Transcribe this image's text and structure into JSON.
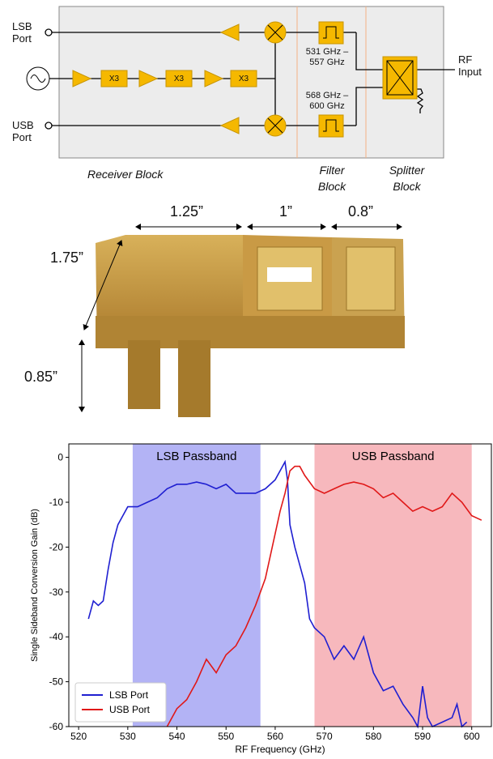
{
  "diagram": {
    "lsb_port": "LSB Port",
    "usb_port": "USB Port",
    "rf_input": "RF Input",
    "multipliers": [
      "X3",
      "X3",
      "X3"
    ],
    "lsb_filter": "531 GHz – 557 GHz",
    "usb_filter": "568 GHz – 600 GHz",
    "receiver_block": "Receiver Block",
    "filter_block": "Filter Block",
    "splitter_block": "Splitter Block"
  },
  "photo": {
    "dimensions": [
      "1.25”",
      "1”",
      "0.8”",
      "1.75”",
      "0.85”"
    ]
  },
  "chart_data": {
    "type": "line",
    "xlabel": "RF Frequency (GHz)",
    "ylabel": "Single Sideband Conversion Gain (dB)",
    "xlim": [
      518,
      604
    ],
    "ylim": [
      -60,
      3
    ],
    "xticks": [
      520,
      530,
      540,
      550,
      560,
      570,
      580,
      590,
      600
    ],
    "yticks": [
      0,
      -10,
      -20,
      -30,
      -40,
      -50,
      -60
    ],
    "legend": "lower left",
    "bands": [
      {
        "label": "LSB Passband",
        "range": [
          531,
          557
        ],
        "color": "#b3b3f5"
      },
      {
        "label": "USB Passband",
        "range": [
          568,
          600
        ],
        "color": "#f7b8bd"
      }
    ],
    "series": [
      {
        "name": "LSB Port",
        "color": "#1f1fd1",
        "x": [
          522,
          523,
          524,
          525,
          526,
          527,
          528,
          529,
          530,
          532,
          534,
          536,
          538,
          540,
          542,
          544,
          546,
          548,
          550,
          552,
          554,
          556,
          558,
          560,
          561,
          562,
          562.5,
          563,
          564,
          565,
          566,
          567,
          568,
          570,
          572,
          574,
          576,
          578,
          580,
          582,
          584,
          586,
          588,
          589,
          590,
          591,
          592,
          594,
          596,
          597,
          598,
          599
        ],
        "values": [
          -36,
          -32,
          -33,
          -32,
          -25,
          -19,
          -15,
          -13,
          -11,
          -11,
          -10,
          -9,
          -7,
          -6,
          -6,
          -5.5,
          -6,
          -7,
          -6,
          -8,
          -8,
          -8,
          -7,
          -5,
          -3,
          -1,
          -5,
          -15,
          -20,
          -24,
          -28,
          -36,
          -38,
          -40,
          -45,
          -42,
          -45,
          -40,
          -48,
          -52,
          -51,
          -55,
          -58,
          -60,
          -51,
          -58,
          -60,
          -59,
          -58,
          -55,
          -60,
          -59
        ]
      },
      {
        "name": "USB Port",
        "color": "#e01818",
        "x": [
          538,
          540,
          542,
          544,
          546,
          548,
          550,
          552,
          554,
          556,
          558,
          560,
          561,
          562,
          563,
          564,
          565,
          566,
          568,
          570,
          572,
          574,
          576,
          578,
          580,
          582,
          584,
          586,
          588,
          590,
          592,
          594,
          596,
          598,
          600,
          602
        ],
        "values": [
          -60,
          -56,
          -54,
          -50,
          -45,
          -48,
          -44,
          -42,
          -38,
          -33,
          -27,
          -17,
          -12,
          -8,
          -3,
          -2,
          -2,
          -4,
          -7,
          -8,
          -7,
          -6,
          -5.5,
          -6,
          -7,
          -9,
          -8,
          -10,
          -12,
          -11,
          -12,
          -11,
          -8,
          -10,
          -13,
          -14
        ]
      }
    ]
  }
}
